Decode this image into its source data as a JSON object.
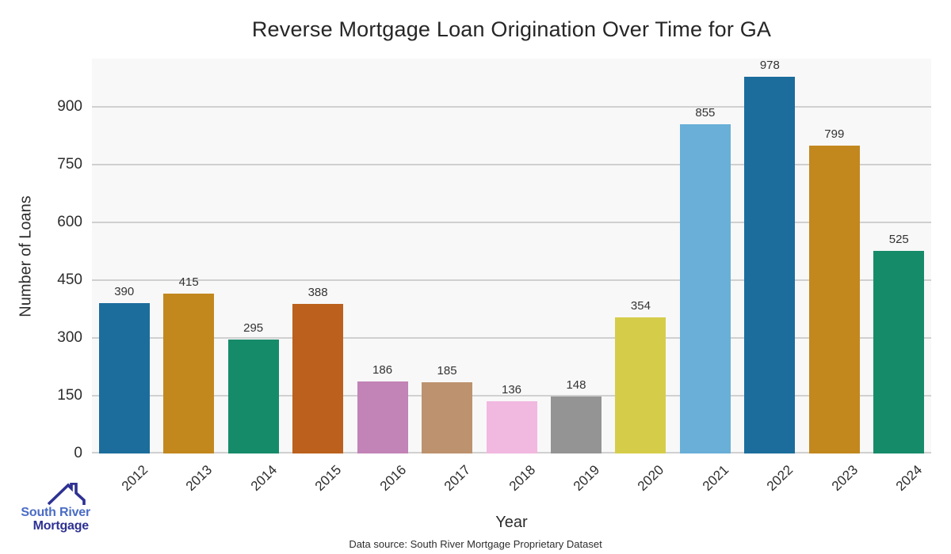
{
  "title": "Reverse Mortgage Loan Origination Over Time for GA",
  "chart_data": {
    "type": "bar",
    "title": "Reverse Mortgage Loan Origination Over Time for GA",
    "xlabel": "Year",
    "ylabel": "Number of Loans",
    "categories": [
      "2012",
      "2013",
      "2014",
      "2015",
      "2016",
      "2017",
      "2018",
      "2019",
      "2020",
      "2021",
      "2022",
      "2023",
      "2024"
    ],
    "values": [
      390,
      415,
      295,
      388,
      186,
      185,
      136,
      148,
      354,
      855,
      978,
      799,
      525
    ],
    "bar_colors": [
      "#1c6d9c",
      "#c2881e",
      "#168b69",
      "#bb611d",
      "#c283b6",
      "#bd926e",
      "#f1b8e0",
      "#949494",
      "#d5cd4a",
      "#69afd7",
      "#1c6d9c",
      "#c2881e",
      "#168b69"
    ],
    "yticks": [
      0,
      150,
      300,
      450,
      600,
      750,
      900
    ],
    "ylim": [
      0,
      1025
    ],
    "grid": true,
    "legend": "none",
    "value_labels_shown": true,
    "plot_bg_color": "#f8f8f8",
    "grid_color": "#d0d0d0"
  },
  "footer": {
    "data_source": "Data source: South River Mortgage Proprietary Dataset"
  },
  "logo": {
    "line1": "South River",
    "line2": "Mortgage",
    "line1_color": "#4a6cc4",
    "line2_color": "#2e3192",
    "roof_color": "#2e3192"
  }
}
